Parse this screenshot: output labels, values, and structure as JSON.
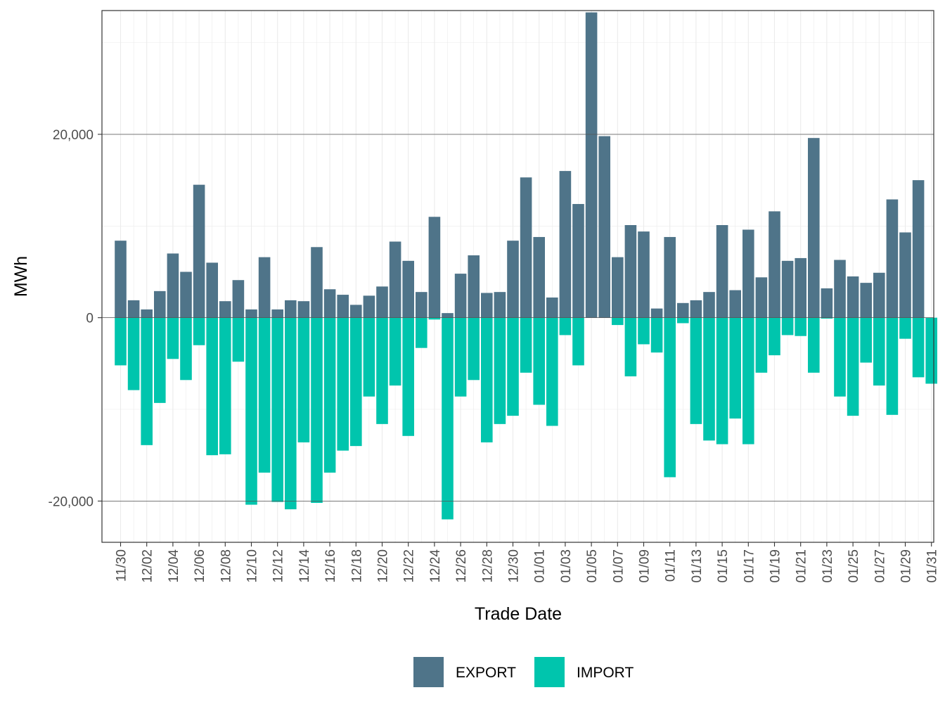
{
  "chart_data": {
    "type": "bar",
    "stacked": "diverging",
    "xlabel": "Trade Date",
    "ylabel": "MWh",
    "ylim": [
      -24500,
      33500
    ],
    "y_ticks": [
      -20000,
      0,
      20000
    ],
    "y_tick_labels": [
      "-20,000",
      "0",
      "20,000"
    ],
    "grid": true,
    "legend_position": "bottom",
    "x_tick_labels": [
      "11/30",
      "12/02",
      "12/04",
      "12/06",
      "12/08",
      "12/10",
      "12/12",
      "12/14",
      "12/16",
      "12/18",
      "12/20",
      "12/22",
      "12/24",
      "12/26",
      "12/28",
      "12/30",
      "01/01",
      "01/03",
      "01/05",
      "01/07",
      "01/09",
      "01/11",
      "01/13",
      "01/15",
      "01/17",
      "01/19",
      "01/21",
      "01/23",
      "01/25",
      "01/27",
      "01/29",
      "01/31"
    ],
    "categories": [
      "11/30",
      "12/01",
      "12/02",
      "12/03",
      "12/04",
      "12/05",
      "12/06",
      "12/07",
      "12/08",
      "12/09",
      "12/10",
      "12/11",
      "12/12",
      "12/13",
      "12/14",
      "12/15",
      "12/16",
      "12/17",
      "12/18",
      "12/19",
      "12/20",
      "12/21",
      "12/22",
      "12/23",
      "12/24",
      "12/25",
      "12/26",
      "12/27",
      "12/28",
      "12/29",
      "12/30",
      "12/31",
      "01/01",
      "01/02",
      "01/03",
      "01/04",
      "01/05",
      "01/06",
      "01/07",
      "01/08",
      "01/09",
      "01/10",
      "01/11",
      "01/12",
      "01/13",
      "01/14",
      "01/15",
      "01/16",
      "01/17",
      "01/18",
      "01/19",
      "01/20",
      "01/21",
      "01/22",
      "01/23",
      "01/24",
      "01/25",
      "01/26",
      "01/27",
      "01/28",
      "01/29",
      "01/30",
      "01/31"
    ],
    "series": [
      {
        "name": "EXPORT",
        "color": "#4f7489",
        "values": [
          8400,
          1900,
          900,
          2900,
          7000,
          5000,
          14500,
          6000,
          1800,
          4100,
          900,
          6600,
          900,
          1900,
          1800,
          7700,
          3100,
          2500,
          1400,
          2400,
          3400,
          8300,
          6200,
          2800,
          11000,
          500,
          4800,
          6800,
          2700,
          2800,
          8400,
          15300,
          8800,
          2200,
          16000,
          12400,
          33300,
          19800,
          6600,
          10100,
          9400,
          1000,
          8800,
          1600,
          1900,
          2800,
          10100,
          3000,
          9600,
          4400,
          11600,
          6200,
          6500,
          19600,
          3200,
          6300,
          4500,
          3800,
          4900,
          12900,
          9300,
          15000,
          0
        ]
      },
      {
        "name": "IMPORT",
        "color": "#00c5ad",
        "values": [
          -5200,
          -7900,
          -13900,
          -9300,
          -4500,
          -6800,
          -3000,
          -15000,
          -14900,
          -4800,
          -20400,
          -16900,
          -20100,
          -20900,
          -13600,
          -20200,
          -16900,
          -14500,
          -14000,
          -8600,
          -11600,
          -7400,
          -12900,
          -3300,
          -200,
          -22000,
          -8600,
          -6800,
          -13600,
          -11600,
          -10700,
          -6000,
          -9500,
          -11800,
          -1900,
          -5200,
          0,
          0,
          -800,
          -6400,
          -2900,
          -3800,
          -17400,
          -600,
          -11600,
          -13400,
          -13800,
          -11000,
          -13800,
          -6000,
          -4100,
          -1900,
          -2000,
          -6000,
          -100,
          -8600,
          -10700,
          -4900,
          -7400,
          -10600,
          -2300,
          -6500,
          -7200
        ]
      }
    ]
  }
}
